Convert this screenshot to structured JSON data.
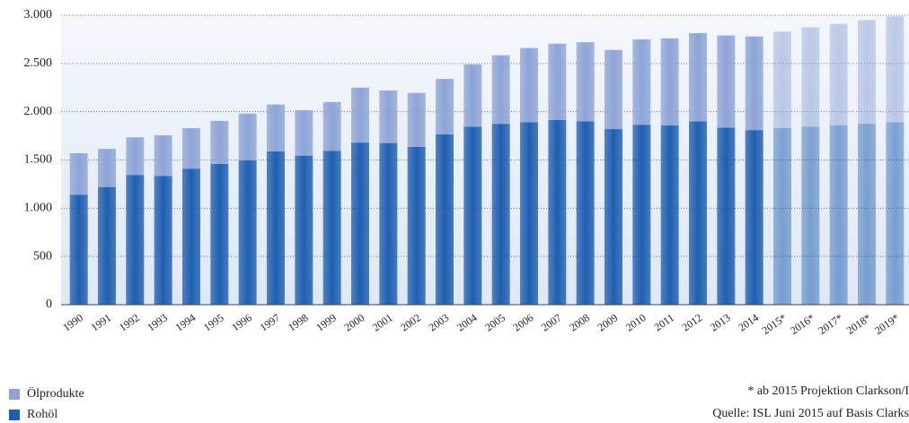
{
  "chart_data": {
    "type": "stacked_bar",
    "categories": [
      "1990",
      "1991",
      "1992",
      "1993",
      "1994",
      "1995",
      "1996",
      "1997",
      "1998",
      "1999",
      "2000",
      "2001",
      "2002",
      "2003",
      "2004",
      "2005",
      "2006",
      "2007",
      "2008",
      "2009",
      "2010",
      "2011",
      "2012",
      "2013",
      "2014",
      "2015*",
      "2016*",
      "2017*",
      "2018*",
      "2019*"
    ],
    "series": [
      {
        "name": "Rohöl",
        "color": "#1f5fb0",
        "values": [
          1140,
          1220,
          1345,
          1335,
          1410,
          1460,
          1495,
          1590,
          1545,
          1595,
          1680,
          1675,
          1635,
          1765,
          1845,
          1875,
          1890,
          1915,
          1900,
          1820,
          1865,
          1860,
          1900,
          1835,
          1810,
          1830,
          1845,
          1860,
          1875,
          1890
        ]
      },
      {
        "name": "Ölprodukte",
        "color": "#8ea4d6",
        "values": [
          430,
          395,
          390,
          420,
          420,
          445,
          485,
          485,
          470,
          505,
          570,
          545,
          560,
          575,
          645,
          710,
          770,
          790,
          820,
          820,
          885,
          900,
          915,
          955,
          970,
          1000,
          1030,
          1050,
          1075,
          1100
        ]
      }
    ],
    "ylim": [
      0,
      3000
    ],
    "yticks": [
      0,
      500,
      {
        "value": 1000,
        "label": "1.000"
      },
      {
        "value": 1500,
        "label": "1.500"
      },
      {
        "value": 2000,
        "label": "2.000"
      },
      {
        "value": 2500,
        "label": "2.500"
      },
      {
        "value": 3000,
        "label": "3.000"
      }
    ],
    "grid": true,
    "notes": [
      "* ab 2015 Projektion Clarkson/I",
      "Quelle: ISL Juni 2015 auf Basis Clarks"
    ]
  }
}
